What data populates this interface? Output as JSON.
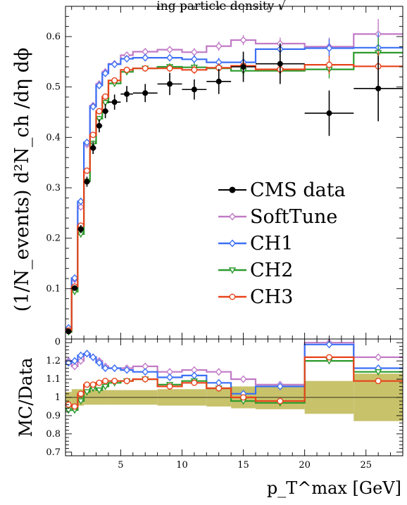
{
  "chart_data": {
    "type": "line",
    "title": "ing particle density √",
    "main": {
      "ylabel": "(1/N_events) d²N_ch /dη dϕ",
      "xlim": [
        0.5,
        28
      ],
      "ylim": [
        0,
        0.66
      ],
      "yticks": [
        "0.1",
        "0.2",
        "0.3",
        "0.4",
        "0.5",
        "0.6"
      ],
      "data": {
        "name": "CMS data",
        "color": "#000000",
        "points": [
          {
            "x": 0.75,
            "y": 0.015,
            "xerr": 0.25,
            "yerr": 0.003
          },
          {
            "x": 1.25,
            "y": 0.101,
            "xerr": 0.25,
            "yerr": 0.005
          },
          {
            "x": 1.75,
            "y": 0.218,
            "xerr": 0.25,
            "yerr": 0.008
          },
          {
            "x": 2.25,
            "y": 0.312,
            "xerr": 0.25,
            "yerr": 0.01
          },
          {
            "x": 2.75,
            "y": 0.379,
            "xerr": 0.25,
            "yerr": 0.012
          },
          {
            "x": 3.25,
            "y": 0.423,
            "xerr": 0.25,
            "yerr": 0.013
          },
          {
            "x": 3.75,
            "y": 0.452,
            "xerr": 0.25,
            "yerr": 0.014
          },
          {
            "x": 4.5,
            "y": 0.47,
            "xerr": 0.5,
            "yerr": 0.015
          },
          {
            "x": 5.5,
            "y": 0.486,
            "xerr": 0.5,
            "yerr": 0.016
          },
          {
            "x": 7,
            "y": 0.488,
            "xerr": 1,
            "yerr": 0.018
          },
          {
            "x": 9,
            "y": 0.506,
            "xerr": 1,
            "yerr": 0.022
          },
          {
            "x": 11,
            "y": 0.495,
            "xerr": 1,
            "yerr": 0.02
          },
          {
            "x": 13,
            "y": 0.511,
            "xerr": 1,
            "yerr": 0.025
          },
          {
            "x": 15,
            "y": 0.54,
            "xerr": 1,
            "yerr": 0.03
          },
          {
            "x": 18,
            "y": 0.546,
            "xerr": 2,
            "yerr": 0.04
          },
          {
            "x": 22,
            "y": 0.448,
            "xerr": 2,
            "yerr": 0.045
          },
          {
            "x": 26,
            "y": 0.497,
            "xerr": 2,
            "yerr": 0.065
          }
        ]
      },
      "bin_edges": [
        0.5,
        1,
        1.5,
        2,
        2.5,
        3,
        3.5,
        4,
        5,
        6,
        8,
        10,
        12,
        14,
        16,
        20,
        24,
        28
      ],
      "centers": [
        0.75,
        1.25,
        1.75,
        2.25,
        2.75,
        3.25,
        3.75,
        4.5,
        5.5,
        7,
        9,
        11,
        13,
        15,
        18,
        22,
        26
      ],
      "series": [
        {
          "name": "SoftTune",
          "color": "#c17ac6",
          "marker": "diamond",
          "values": [
            0.018,
            0.118,
            0.262,
            0.386,
            0.463,
            0.506,
            0.53,
            0.546,
            0.563,
            0.57,
            0.574,
            0.569,
            0.581,
            0.593,
            0.586,
            0.58,
            0.605
          ],
          "errors": [
            0.003,
            0.004,
            0.005,
            0.006,
            0.006,
            0.006,
            0.006,
            0.005,
            0.006,
            0.006,
            0.007,
            0.008,
            0.009,
            0.01,
            0.012,
            0.018,
            0.03
          ]
        },
        {
          "name": "CH1",
          "color": "#3b6ff5",
          "marker": "diamond",
          "values": [
            0.022,
            0.121,
            0.273,
            0.39,
            0.461,
            0.503,
            0.527,
            0.545,
            0.556,
            0.558,
            0.558,
            0.555,
            0.549,
            0.549,
            0.575,
            0.577,
            0.578
          ],
          "errors": [
            0.003,
            0.004,
            0.005,
            0.006,
            0.006,
            0.006,
            0.006,
            0.005,
            0.006,
            0.006,
            0.007,
            0.008,
            0.009,
            0.01,
            0.012,
            0.018,
            0.03
          ]
        },
        {
          "name": "CH2",
          "color": "#2c9a2c",
          "marker": "triangle",
          "values": [
            0.014,
            0.094,
            0.208,
            0.313,
            0.388,
            0.437,
            0.469,
            0.507,
            0.53,
            0.537,
            0.54,
            0.539,
            0.537,
            0.532,
            0.532,
            0.535,
            0.568
          ],
          "errors": [
            0.003,
            0.004,
            0.005,
            0.006,
            0.006,
            0.006,
            0.006,
            0.005,
            0.006,
            0.006,
            0.007,
            0.008,
            0.009,
            0.01,
            0.012,
            0.018,
            0.03
          ]
        },
        {
          "name": "CH3",
          "color": "#e8431b",
          "marker": "circle",
          "values": [
            0.017,
            0.104,
            0.225,
            0.334,
            0.405,
            0.452,
            0.481,
            0.513,
            0.534,
            0.537,
            0.537,
            0.534,
            0.538,
            0.542,
            0.535,
            0.544,
            0.541
          ],
          "errors": [
            0.003,
            0.004,
            0.005,
            0.006,
            0.006,
            0.006,
            0.006,
            0.005,
            0.006,
            0.006,
            0.007,
            0.008,
            0.009,
            0.01,
            0.012,
            0.018,
            0.03
          ]
        }
      ],
      "legend_position": "center-right"
    },
    "ratio": {
      "ylabel": "MC/Data",
      "ylim": [
        0.68,
        1.32
      ],
      "yticks": [
        "0.7",
        "0.8",
        "0.9",
        "1",
        "1.1",
        "1.2",
        "0"
      ],
      "band_color": "#c8c26b",
      "band": [
        [
          0.5,
          1,
          0.03
        ],
        [
          1,
          2,
          0.045
        ],
        [
          2,
          4,
          0.04
        ],
        [
          4,
          8,
          0.04
        ],
        [
          8,
          12,
          0.045
        ],
        [
          12,
          14,
          0.05
        ],
        [
          14,
          16,
          0.06
        ],
        [
          16,
          20,
          0.065
        ],
        [
          20,
          24,
          0.09
        ],
        [
          24,
          28,
          0.13
        ]
      ],
      "series": [
        {
          "name": "SoftTune",
          "values": [
            1.2,
            1.17,
            1.2,
            1.24,
            1.22,
            1.2,
            1.17,
            1.16,
            1.16,
            1.17,
            1.14,
            1.15,
            1.14,
            1.1,
            1.07,
            1.3,
            1.22
          ]
        },
        {
          "name": "CH1",
          "values": [
            1.19,
            1.2,
            1.23,
            1.24,
            1.22,
            1.19,
            1.16,
            1.16,
            1.15,
            1.14,
            1.11,
            1.12,
            1.08,
            1.02,
            1.06,
            1.29,
            1.16
          ]
        },
        {
          "name": "CH2",
          "values": [
            0.93,
            0.93,
            0.98,
            1.03,
            1.05,
            1.04,
            1.06,
            1.08,
            1.09,
            1.1,
            1.07,
            1.09,
            1.05,
            0.98,
            0.97,
            1.2,
            1.14
          ]
        },
        {
          "name": "CH3",
          "values": [
            0.96,
            0.95,
            1.02,
            1.07,
            1.07,
            1.08,
            1.09,
            1.09,
            1.09,
            1.1,
            1.06,
            1.08,
            1.05,
            1.0,
            0.98,
            1.22,
            1.09
          ]
        }
      ]
    },
    "xlabel": "p_T^max [GeV]",
    "xticks": [
      "5",
      "10",
      "15",
      "20",
      "25"
    ]
  }
}
